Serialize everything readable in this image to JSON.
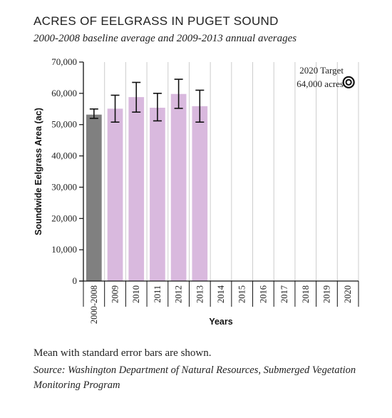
{
  "title": "ACRES OF EELGRASS IN PUGET SOUND",
  "subtitle": "2000-2008 baseline average and 2009-2013 annual averages",
  "note": "Mean with standard error bars are shown.",
  "source": "Source: Washington Department of Natural Resources, Submerged Vegetation Monitoring Program",
  "chart_data": {
    "type": "bar",
    "xlabel": "Years",
    "ylabel": "Soundwide Eelgrass Area (ac)",
    "ylim": [
      0,
      70000
    ],
    "yticks": [
      0,
      10000,
      20000,
      30000,
      40000,
      50000,
      60000,
      70000
    ],
    "ytick_labels": [
      "0",
      "10,000",
      "20,000",
      "30,000",
      "40,000",
      "50,000",
      "60,000",
      "70,000"
    ],
    "grid": "vertical lines between categories",
    "categories": [
      "2000-2008",
      "2009",
      "2010",
      "2011",
      "2012",
      "2013",
      "2014",
      "2015",
      "2016",
      "2017",
      "2018",
      "2019",
      "2020"
    ],
    "values": [
      53200,
      55100,
      58800,
      55400,
      59800,
      55900,
      null,
      null,
      null,
      null,
      null,
      null,
      null
    ],
    "error_low": [
      52000,
      50800,
      54000,
      51200,
      55200,
      50800,
      null,
      null,
      null,
      null,
      null,
      null,
      null
    ],
    "error_high": [
      55000,
      59400,
      63500,
      60000,
      64500,
      61000,
      null,
      null,
      null,
      null,
      null,
      null,
      null
    ],
    "bar_colors": [
      "#808080",
      "#d9b9de",
      "#d9b9de",
      "#d9b9de",
      "#d9b9de",
      "#d9b9de"
    ],
    "target": {
      "category": "2020",
      "value": 64000,
      "label_line1": "2020 Target",
      "label_line2": "64,000 acres"
    }
  }
}
